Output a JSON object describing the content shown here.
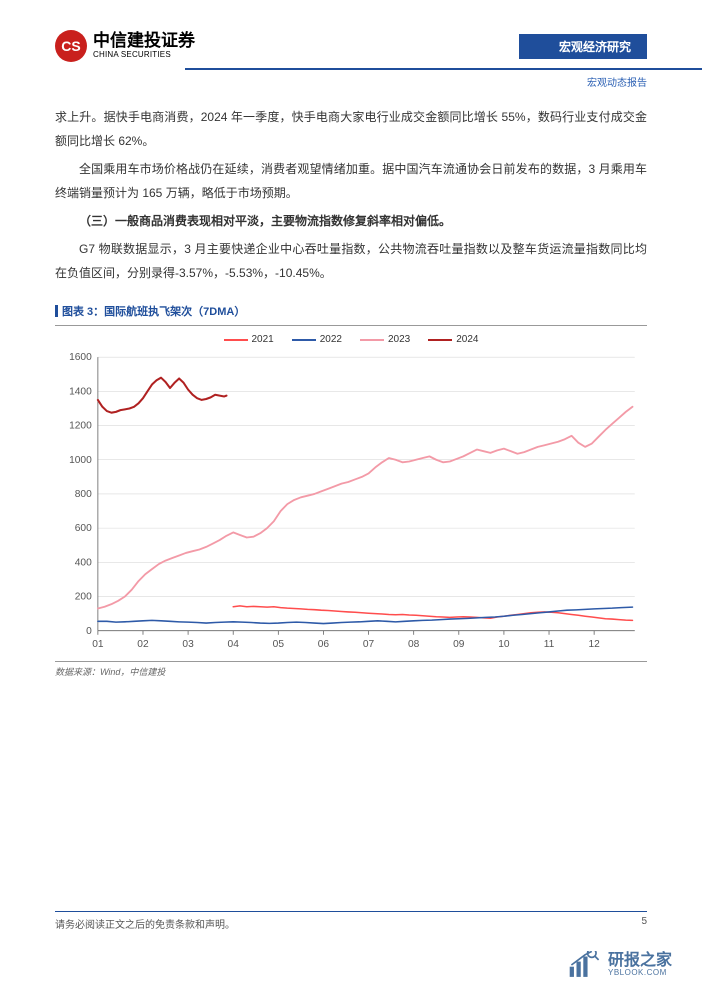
{
  "header": {
    "logo_cn": "中信建投证券",
    "logo_en": "CHINA SECURITIES",
    "logo_mark": "CS",
    "category": "宏观经济研究",
    "sub_category": "宏观动态报告"
  },
  "paragraphs": {
    "p1": "求上升。据快手电商消费，2024 年一季度，快手电商大家电行业成交金额同比增长 55%，数码行业支付成交金额同比增长 62%。",
    "p2": "全国乘用车市场价格战仍在延续，消费者观望情绪加重。据中国汽车流通协会日前发布的数据，3 月乘用车终端销量预计为 165 万辆，略低于市场预期。",
    "p3_head": "（三）一般商品消费表现相对平淡，主要物流指数修复斜率相对偏低。",
    "p4": "G7 物联数据显示，3 月主要快递企业中心吞吐量指数，公共物流吞吐量指数以及整车货运流量指数同比均在负值区间，分别录得-3.57%，-5.53%，-10.45%。"
  },
  "chart": {
    "title": "图表 3：国际航班执飞架次（7DMA）",
    "source": "数据来源：Wind，中信建投",
    "background_color": "#ffffff",
    "grid_color": "#d9d9d9",
    "axis_color": "#666666",
    "label_fontsize": 10,
    "ylim": [
      0,
      1600
    ],
    "ytick_step": 200,
    "yticks": [
      0,
      200,
      400,
      600,
      800,
      1000,
      1200,
      1400,
      1600
    ],
    "xticks": [
      "01",
      "02",
      "03",
      "04",
      "05",
      "06",
      "07",
      "08",
      "09",
      "10",
      "11",
      "12"
    ],
    "legend": [
      {
        "label": "2021",
        "color": "#ff4d4d"
      },
      {
        "label": "2022",
        "color": "#2e5aa8"
      },
      {
        "label": "2023",
        "color": "#f39aa7"
      },
      {
        "label": "2024",
        "color": "#b02121"
      }
    ],
    "series": {
      "s2021": {
        "color": "#ff4d4d",
        "stroke_width": 1.5,
        "data": [
          [
            4,
            140
          ],
          [
            4.15,
            145
          ],
          [
            4.3,
            140
          ],
          [
            4.45,
            142
          ],
          [
            4.6,
            140
          ],
          [
            4.75,
            138
          ],
          [
            4.9,
            140
          ],
          [
            5.05,
            135
          ],
          [
            5.2,
            132
          ],
          [
            5.35,
            130
          ],
          [
            5.5,
            128
          ],
          [
            5.65,
            125
          ],
          [
            5.8,
            123
          ],
          [
            5.95,
            120
          ],
          [
            6.1,
            118
          ],
          [
            6.25,
            115
          ],
          [
            6.4,
            112
          ],
          [
            6.55,
            110
          ],
          [
            6.7,
            108
          ],
          [
            6.85,
            105
          ],
          [
            7,
            102
          ],
          [
            7.15,
            100
          ],
          [
            7.3,
            98
          ],
          [
            7.45,
            95
          ],
          [
            7.6,
            93
          ],
          [
            7.75,
            95
          ],
          [
            7.9,
            92
          ],
          [
            8.05,
            90
          ],
          [
            8.2,
            88
          ],
          [
            8.35,
            85
          ],
          [
            8.5,
            82
          ],
          [
            8.65,
            80
          ],
          [
            8.8,
            78
          ],
          [
            8.95,
            80
          ],
          [
            9.1,
            82
          ],
          [
            9.25,
            80
          ],
          [
            9.4,
            78
          ],
          [
            9.55,
            75
          ],
          [
            9.7,
            73
          ],
          [
            9.85,
            80
          ],
          [
            10,
            85
          ],
          [
            10.15,
            90
          ],
          [
            10.3,
            95
          ],
          [
            10.45,
            100
          ],
          [
            10.6,
            105
          ],
          [
            10.75,
            108
          ],
          [
            10.9,
            110
          ],
          [
            11.05,
            108
          ],
          [
            11.2,
            105
          ],
          [
            11.35,
            100
          ],
          [
            11.5,
            95
          ],
          [
            11.65,
            90
          ],
          [
            11.8,
            85
          ],
          [
            11.95,
            80
          ],
          [
            12.1,
            75
          ],
          [
            12.25,
            70
          ],
          [
            12.4,
            68
          ],
          [
            12.55,
            65
          ],
          [
            12.7,
            62
          ],
          [
            12.85,
            60
          ]
        ]
      },
      "s2022": {
        "color": "#2e5aa8",
        "stroke_width": 1.5,
        "data": [
          [
            1,
            55
          ],
          [
            1.2,
            55
          ],
          [
            1.4,
            50
          ],
          [
            1.6,
            52
          ],
          [
            1.8,
            55
          ],
          [
            2,
            58
          ],
          [
            2.2,
            60
          ],
          [
            2.4,
            58
          ],
          [
            2.6,
            55
          ],
          [
            2.8,
            52
          ],
          [
            3,
            50
          ],
          [
            3.2,
            48
          ],
          [
            3.4,
            45
          ],
          [
            3.6,
            48
          ],
          [
            3.8,
            50
          ],
          [
            4,
            52
          ],
          [
            4.2,
            50
          ],
          [
            4.4,
            48
          ],
          [
            4.6,
            45
          ],
          [
            4.8,
            43
          ],
          [
            5,
            45
          ],
          [
            5.2,
            48
          ],
          [
            5.4,
            50
          ],
          [
            5.6,
            48
          ],
          [
            5.8,
            45
          ],
          [
            6,
            42
          ],
          [
            6.2,
            45
          ],
          [
            6.4,
            48
          ],
          [
            6.6,
            50
          ],
          [
            6.8,
            52
          ],
          [
            7,
            55
          ],
          [
            7.2,
            58
          ],
          [
            7.4,
            55
          ],
          [
            7.6,
            52
          ],
          [
            7.8,
            55
          ],
          [
            8,
            58
          ],
          [
            8.2,
            60
          ],
          [
            8.4,
            62
          ],
          [
            8.6,
            65
          ],
          [
            8.8,
            68
          ],
          [
            9,
            70
          ],
          [
            9.2,
            72
          ],
          [
            9.4,
            75
          ],
          [
            9.6,
            78
          ],
          [
            9.8,
            80
          ],
          [
            10,
            85
          ],
          [
            10.2,
            90
          ],
          [
            10.4,
            95
          ],
          [
            10.6,
            100
          ],
          [
            10.8,
            105
          ],
          [
            11,
            110
          ],
          [
            11.2,
            115
          ],
          [
            11.4,
            120
          ],
          [
            11.6,
            122
          ],
          [
            11.8,
            125
          ],
          [
            12,
            128
          ],
          [
            12.2,
            130
          ],
          [
            12.4,
            132
          ],
          [
            12.6,
            135
          ],
          [
            12.85,
            138
          ]
        ]
      },
      "s2023": {
        "color": "#f39aa7",
        "stroke_width": 1.8,
        "data": [
          [
            1,
            130
          ],
          [
            1.15,
            140
          ],
          [
            1.3,
            155
          ],
          [
            1.45,
            175
          ],
          [
            1.6,
            200
          ],
          [
            1.75,
            240
          ],
          [
            1.9,
            290
          ],
          [
            2.05,
            330
          ],
          [
            2.2,
            360
          ],
          [
            2.35,
            390
          ],
          [
            2.5,
            410
          ],
          [
            2.65,
            425
          ],
          [
            2.8,
            440
          ],
          [
            2.95,
            455
          ],
          [
            3.1,
            465
          ],
          [
            3.25,
            475
          ],
          [
            3.4,
            490
          ],
          [
            3.55,
            510
          ],
          [
            3.7,
            530
          ],
          [
            3.85,
            555
          ],
          [
            4,
            575
          ],
          [
            4.15,
            560
          ],
          [
            4.3,
            545
          ],
          [
            4.45,
            550
          ],
          [
            4.6,
            570
          ],
          [
            4.75,
            600
          ],
          [
            4.9,
            640
          ],
          [
            5.05,
            700
          ],
          [
            5.2,
            740
          ],
          [
            5.35,
            765
          ],
          [
            5.5,
            780
          ],
          [
            5.65,
            790
          ],
          [
            5.8,
            800
          ],
          [
            5.95,
            815
          ],
          [
            6.1,
            830
          ],
          [
            6.25,
            845
          ],
          [
            6.4,
            860
          ],
          [
            6.55,
            870
          ],
          [
            6.7,
            885
          ],
          [
            6.85,
            900
          ],
          [
            7,
            920
          ],
          [
            7.15,
            955
          ],
          [
            7.3,
            985
          ],
          [
            7.45,
            1010
          ],
          [
            7.6,
            1000
          ],
          [
            7.75,
            985
          ],
          [
            7.9,
            990
          ],
          [
            8.05,
            1000
          ],
          [
            8.2,
            1010
          ],
          [
            8.35,
            1020
          ],
          [
            8.5,
            1000
          ],
          [
            8.65,
            985
          ],
          [
            8.8,
            990
          ],
          [
            8.95,
            1005
          ],
          [
            9.1,
            1020
          ],
          [
            9.25,
            1040
          ],
          [
            9.4,
            1060
          ],
          [
            9.55,
            1050
          ],
          [
            9.7,
            1040
          ],
          [
            9.85,
            1055
          ],
          [
            10,
            1065
          ],
          [
            10.15,
            1050
          ],
          [
            10.3,
            1035
          ],
          [
            10.45,
            1045
          ],
          [
            10.6,
            1060
          ],
          [
            10.75,
            1075
          ],
          [
            10.9,
            1085
          ],
          [
            11.05,
            1095
          ],
          [
            11.2,
            1105
          ],
          [
            11.35,
            1120
          ],
          [
            11.5,
            1140
          ],
          [
            11.65,
            1100
          ],
          [
            11.8,
            1075
          ],
          [
            11.95,
            1095
          ],
          [
            12.1,
            1135
          ],
          [
            12.25,
            1175
          ],
          [
            12.4,
            1210
          ],
          [
            12.55,
            1245
          ],
          [
            12.7,
            1280
          ],
          [
            12.85,
            1310
          ]
        ]
      },
      "s2024": {
        "color": "#b02121",
        "stroke_width": 2.0,
        "data": [
          [
            1,
            1350
          ],
          [
            1.1,
            1310
          ],
          [
            1.2,
            1285
          ],
          [
            1.3,
            1275
          ],
          [
            1.4,
            1280
          ],
          [
            1.5,
            1290
          ],
          [
            1.6,
            1295
          ],
          [
            1.7,
            1300
          ],
          [
            1.8,
            1310
          ],
          [
            1.9,
            1330
          ],
          [
            2,
            1360
          ],
          [
            2.1,
            1400
          ],
          [
            2.2,
            1440
          ],
          [
            2.3,
            1465
          ],
          [
            2.4,
            1480
          ],
          [
            2.5,
            1455
          ],
          [
            2.6,
            1420
          ],
          [
            2.7,
            1450
          ],
          [
            2.8,
            1475
          ],
          [
            2.9,
            1450
          ],
          [
            3,
            1410
          ],
          [
            3.1,
            1380
          ],
          [
            3.2,
            1360
          ],
          [
            3.3,
            1350
          ],
          [
            3.4,
            1355
          ],
          [
            3.5,
            1365
          ],
          [
            3.6,
            1380
          ],
          [
            3.7,
            1375
          ],
          [
            3.8,
            1370
          ],
          [
            3.85,
            1375
          ]
        ]
      }
    }
  },
  "footer": {
    "disclaimer": "请务必阅读正文之后的免责条款和声明。",
    "page_number": "5"
  },
  "watermark": {
    "cn": "研报之家",
    "en": "YBLOOK.COM"
  }
}
